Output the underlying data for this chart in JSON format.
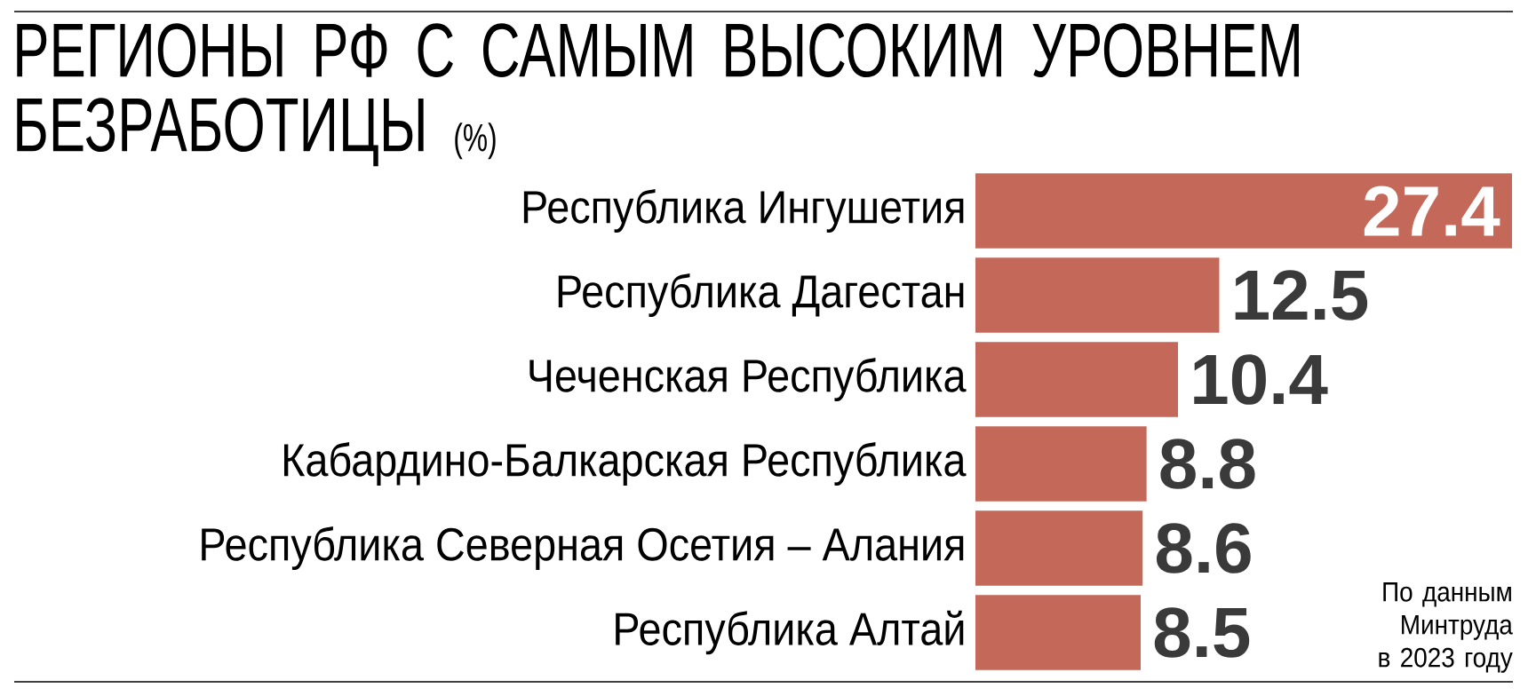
{
  "chart_data": {
    "type": "bar",
    "orientation": "horizontal",
    "title": "РЕГИОНЫ РФ С САМЫМ ВЫСОКИМ УРОВНЕМ БЕЗРАБОТИЦЫ",
    "subtitle": "(%)",
    "categories": [
      "Республика Ингушетия",
      "Республика Дагестан",
      "Чеченская Республика",
      "Кабардино-Балкарская Республика",
      "Республика Северная Осетия – Алания",
      "Республика Алтай"
    ],
    "values": [
      27.4,
      12.5,
      10.4,
      8.8,
      8.6,
      8.5
    ],
    "color": "#c4695a",
    "data_labels": true,
    "annotations": [
      "По данным Минтруда в 2023 году"
    ]
  }
}
